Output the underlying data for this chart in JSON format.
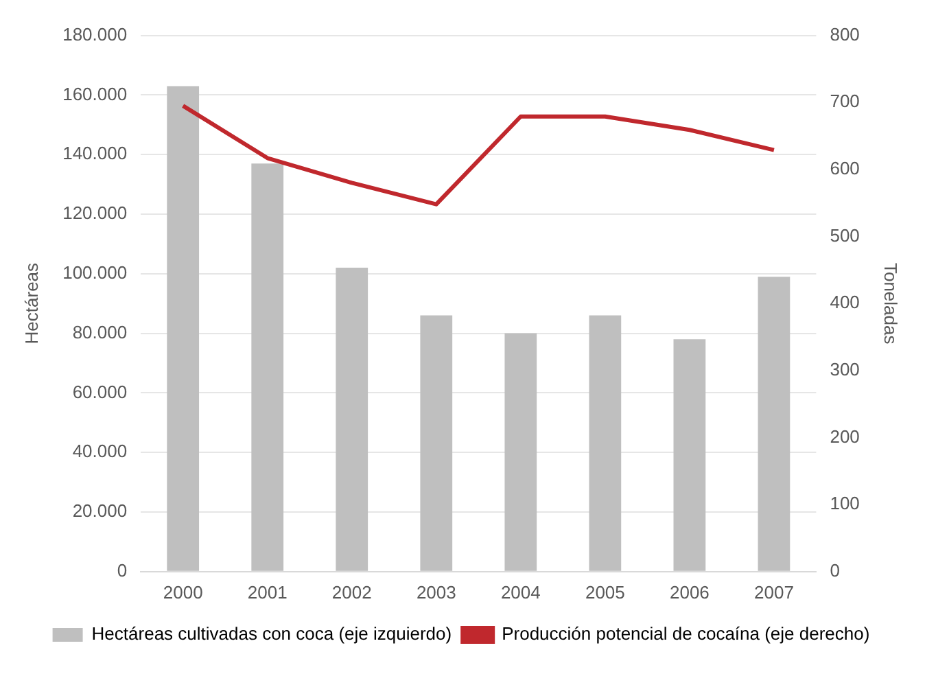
{
  "chart_data": {
    "type": "bar",
    "categories": [
      "2000",
      "2001",
      "2002",
      "2003",
      "2004",
      "2005",
      "2006",
      "2007"
    ],
    "series": [
      {
        "name": "Hectáreas cultivadas con coca (eje izquierdo)",
        "color": "#bfbfbf",
        "values": [
          163000,
          137000,
          102000,
          86000,
          80000,
          86000,
          78000,
          99000
        ]
      },
      {
        "name": "Producción potencial de cocaína (eje derecho)",
        "type": "line",
        "axis": "y2",
        "color": "#c0282d",
        "values": [
          695,
          617,
          580,
          548,
          679,
          679,
          659,
          629
        ]
      }
    ],
    "ylabel": "Hectáreas",
    "y2label": "Toneladas",
    "ylim": [
      0,
      180000
    ],
    "yticks": [
      0,
      {
        "value": 20000,
        "label": "20.000"
      },
      {
        "value": 40000,
        "label": "40.000"
      },
      {
        "value": 60000,
        "label": "60.000"
      },
      {
        "value": 80000,
        "label": "80.000"
      },
      {
        "value": 100000,
        "label": "100.000"
      },
      {
        "value": 120000,
        "label": "120.000"
      },
      {
        "value": 140000,
        "label": "140.000"
      },
      {
        "value": 160000,
        "label": "160.000"
      },
      {
        "value": 180000,
        "label": "180.000"
      }
    ],
    "y2lim": [
      0,
      800
    ],
    "y2ticks": [
      0,
      100,
      200,
      300,
      400,
      500,
      600,
      700,
      800
    ],
    "grid": "y",
    "legend": "bottom",
    "marker": "none"
  }
}
